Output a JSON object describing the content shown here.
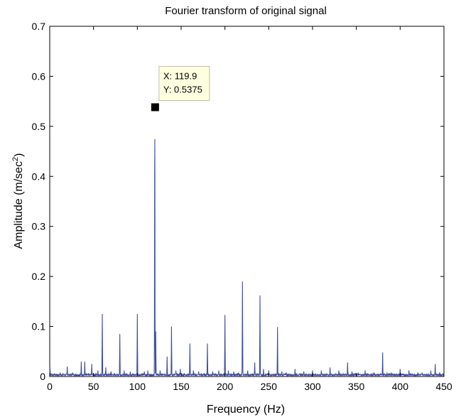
{
  "chart_data": {
    "type": "line",
    "title": "Fourier transform of original signal",
    "xlabel": "Frequency (Hz)",
    "ylabel_main": "Amplitude  (m/sec",
    "ylabel_sup": "2",
    "ylabel_end": ")",
    "xlim": [
      0,
      450
    ],
    "ylim": [
      0,
      0.7
    ],
    "xticks": [
      0,
      50,
      100,
      150,
      200,
      250,
      300,
      350,
      400,
      450
    ],
    "yticks": [
      0,
      0.1,
      0.2,
      0.3,
      0.4,
      0.5,
      0.6,
      0.7
    ],
    "xtick_labels": [
      "0",
      "50",
      "100",
      "150",
      "200",
      "250",
      "300",
      "350",
      "400",
      "450"
    ],
    "ytick_labels": [
      "0",
      "0.1",
      "0.2",
      "0.3",
      "0.4",
      "0.5",
      "0.6",
      "0.7"
    ],
    "grid": false,
    "line_color": "#3f4fa0",
    "baseline": 0.004,
    "peaks": [
      [
        0.3,
        0.02
      ],
      [
        5,
        0.006
      ],
      [
        12,
        0.008
      ],
      [
        20,
        0.02
      ],
      [
        26,
        0.008
      ],
      [
        36,
        0.03
      ],
      [
        40,
        0.03
      ],
      [
        48,
        0.025
      ],
      [
        55,
        0.012
      ],
      [
        60,
        0.125
      ],
      [
        64,
        0.018
      ],
      [
        70,
        0.01
      ],
      [
        80,
        0.085
      ],
      [
        85,
        0.012
      ],
      [
        92,
        0.01
      ],
      [
        100,
        0.125
      ],
      [
        108,
        0.01
      ],
      [
        112,
        0.012
      ],
      [
        119.9,
        0.5375
      ],
      [
        121,
        0.09
      ],
      [
        126,
        0.012
      ],
      [
        134,
        0.04
      ],
      [
        139,
        0.1
      ],
      [
        144,
        0.012
      ],
      [
        149,
        0.015
      ],
      [
        160,
        0.066
      ],
      [
        164,
        0.012
      ],
      [
        170,
        0.01
      ],
      [
        180,
        0.066
      ],
      [
        186,
        0.01
      ],
      [
        193,
        0.012
      ],
      [
        200,
        0.123
      ],
      [
        204,
        0.012
      ],
      [
        210,
        0.01
      ],
      [
        220,
        0.19
      ],
      [
        226,
        0.012
      ],
      [
        234,
        0.028
      ],
      [
        240,
        0.162
      ],
      [
        244,
        0.015
      ],
      [
        250,
        0.012
      ],
      [
        260,
        0.099
      ],
      [
        265,
        0.01
      ],
      [
        270,
        0.008
      ],
      [
        280,
        0.015
      ],
      [
        290,
        0.01
      ],
      [
        300,
        0.012
      ],
      [
        310,
        0.012
      ],
      [
        320,
        0.018
      ],
      [
        330,
        0.012
      ],
      [
        340,
        0.028
      ],
      [
        345,
        0.01
      ],
      [
        352,
        0.008
      ],
      [
        360,
        0.012
      ],
      [
        370,
        0.008
      ],
      [
        380,
        0.048
      ],
      [
        385,
        0.008
      ],
      [
        390,
        0.008
      ],
      [
        400,
        0.015
      ],
      [
        410,
        0.012
      ],
      [
        420,
        0.008
      ],
      [
        425,
        0.008
      ],
      [
        435,
        0.012
      ],
      [
        440,
        0.025
      ],
      [
        445,
        0.008
      ],
      [
        449,
        0.006
      ]
    ],
    "annotation": {
      "x": 119.9,
      "y": 0.5375,
      "x_label": "X: 119.9",
      "y_label": "Y: 0.5375"
    }
  }
}
